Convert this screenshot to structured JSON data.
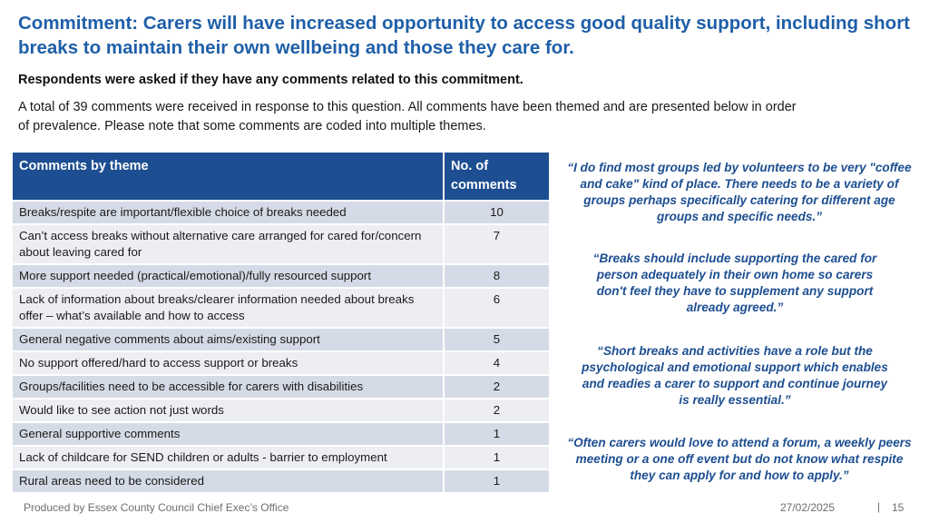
{
  "title": "Commitment: Carers will have increased opportunity to access good quality support, including short breaks to maintain their own wellbeing and those they care for.",
  "question": "Respondents were asked if they have any comments related to this commitment.",
  "intro": "A total of 39 comments were received in response to this question. All comments have been themed and are presented below in order of prevalence. Please note that some comments are coded into multiple themes.",
  "table": {
    "headers": [
      "Comments by theme",
      "No. of comments"
    ],
    "rows": [
      {
        "theme": "Breaks/respite are important/flexible choice of breaks needed",
        "count": "10"
      },
      {
        "theme": "Can’t access breaks without alternative care arranged for cared for/concern about leaving cared for",
        "count": "7"
      },
      {
        "theme": "More support needed (practical/emotional)/fully resourced support",
        "count": "8"
      },
      {
        "theme": "Lack of information about breaks/clearer information needed about breaks offer – what’s available and how to access",
        "count": "6"
      },
      {
        "theme": "General negative comments about aims/existing support",
        "count": "5"
      },
      {
        "theme": "No support offered/hard to access support or breaks",
        "count": "4"
      },
      {
        "theme": "Groups/facilities need to be accessible for carers with disabilities",
        "count": "2"
      },
      {
        "theme": "Would like to see action not just words",
        "count": "2"
      },
      {
        "theme": "General supportive comments",
        "count": "1"
      },
      {
        "theme": "Lack of childcare for SEND children or adults - barrier to employment",
        "count": "1"
      },
      {
        "theme": "Rural areas need to be considered",
        "count": "1"
      }
    ]
  },
  "quotes": [
    "“I do find most groups led by volunteers to be very \"coffee and cake\" kind of place. There needs to be a variety of groups perhaps specifically catering for different age groups and specific needs.”",
    "“Breaks should include supporting the cared for person adequately in their own home so carers don't feel they have to supplement any support already agreed.”",
    "“Short breaks and activities have a role but the psychological and emotional support which enables and readies a carer to support and continue journey is really essential.”",
    "“Often carers would love to attend a forum, a weekly peers meeting or a one off event but do not know what respite they can apply for and how to apply.”"
  ],
  "footer": {
    "producer": "Produced by Essex County Council Chief Exec’s Office",
    "date": "27/02/2025",
    "separator": "|",
    "page": "15"
  }
}
